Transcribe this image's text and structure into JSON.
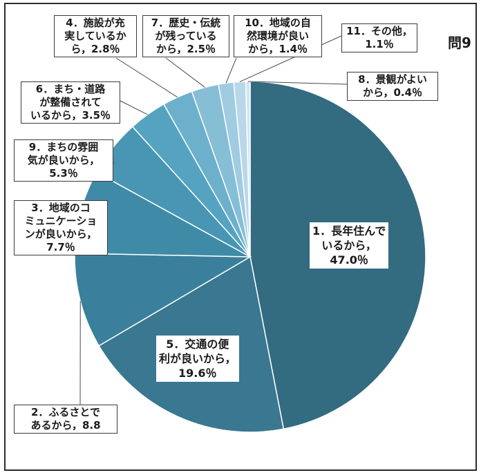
{
  "question_label": "問9",
  "colors": {
    "slices": [
      "#336b80",
      "#3a7791",
      "#3a809d",
      "#3f8ba7",
      "#4896b3",
      "#55a3c0",
      "#6cb0cc",
      "#86bed6",
      "#a0cbe0",
      "#b8d8e9",
      "#d1e6f1"
    ],
    "edge": "#ffffff"
  },
  "chart_data": {
    "type": "pie",
    "start": "top",
    "direction": "clockwise",
    "slices": [
      {
        "label": "1．長年住んでいるから，47.0％",
        "value": 47.0
      },
      {
        "label": "5．交通の便利が良いから，19.6％",
        "value": 19.6
      },
      {
        "label": "2．ふるさとであるから，8.8",
        "value": 8.8
      },
      {
        "label": "3．地域のコミュニケーションが良いから，7.7％",
        "value": 7.7
      },
      {
        "label": "9．まちの雰囲気が良いから，5.3％",
        "value": 5.3
      },
      {
        "label": "6．まち・道路が整備されているから，3.5％",
        "value": 3.5
      },
      {
        "label": "4．施設が充実しているから，2.8％",
        "value": 2.8
      },
      {
        "label": "7．歴史・伝統が残っているから，2.5％",
        "value": 2.5
      },
      {
        "label": "10．地域の自然環境が良いから，1.4％",
        "value": 1.4
      },
      {
        "label": "11．その他，1.1％",
        "value": 1.1
      },
      {
        "label": "8．景観がよいから，0.4％",
        "value": 0.4
      }
    ]
  },
  "labels": {
    "s1": "1．長年住んで\nいるから，\n47.0％",
    "s5": "5．交通の便\n利が良いから，\n19.6％",
    "s2": "2．ふるさとで\nあるから，8.8",
    "s3": "3．地域のコ\nミュニケーショ\nンが良いから，\n7.7％",
    "s9": "9．まちの雰囲\n気が良いから，\n5.3％",
    "s6": "6．まち・道路\nが整備されて\nいるから，3.5％",
    "s4": "4．施設が充\n実しているか\nら，2.8％",
    "s7": "7．歴史・伝統\nが残っている\nから，2.5％",
    "s10": "10．地域の自\n然環境が良い\nから，1.4％",
    "s11": "11．その他，\n1.1％",
    "s8": "8．景観がよい\nから，0.4％"
  }
}
